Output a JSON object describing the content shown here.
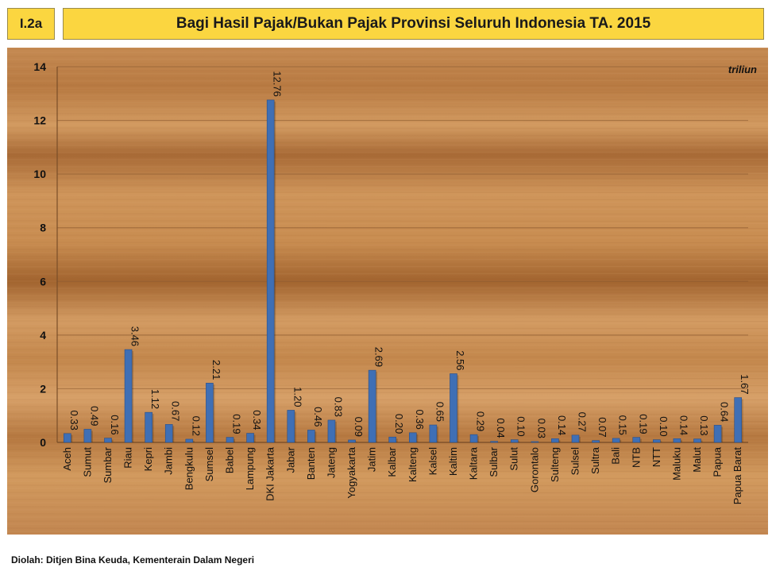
{
  "header": {
    "code": "I.2a",
    "title": "Bagi Hasil Pajak/Bukan Pajak  Provinsi Seluruh Indonesia TA. 2015"
  },
  "unit_label": "triliun",
  "source": "Diolah: Ditjen Bina Keuda, Kementerain Dalam Negeri",
  "colors": {
    "bar": "#3f6fb5",
    "header_bg": "#fbd640",
    "wood": "#c98a4e"
  },
  "chart_data": {
    "type": "bar",
    "title": "Bagi Hasil Pajak/Bukan Pajak  Provinsi Seluruh Indonesia TA. 2015",
    "ylabel": "triliun",
    "ylim": [
      0,
      14
    ],
    "yticks": [
      0,
      2,
      4,
      6,
      8,
      10,
      12,
      14
    ],
    "grid": true,
    "categories": [
      "Aceh",
      "Sumut",
      "Sumbar",
      "Riau",
      "Kepri",
      "Jambi",
      "Bengkulu",
      "Sumsel",
      "Babel",
      "Lampung",
      "DKI Jakarta",
      "Jabar",
      "Banten",
      "Jateng",
      "Yogyakarta",
      "Jatim",
      "Kalbar",
      "Kalteng",
      "Kalsel",
      "Kaltim",
      "Kaltara",
      "Sulbar",
      "Sulut",
      "Gorontalo",
      "Sulteng",
      "Sulsel",
      "Sultra",
      "Bali",
      "NTB",
      "NTT",
      "Maluku",
      "Malut",
      "Papua",
      "Papua Barat"
    ],
    "values": [
      0.33,
      0.49,
      0.16,
      3.46,
      1.12,
      0.67,
      0.12,
      2.21,
      0.19,
      0.34,
      12.76,
      1.2,
      0.46,
      0.83,
      0.09,
      2.69,
      0.2,
      0.36,
      0.65,
      2.56,
      0.29,
      0.04,
      0.1,
      0.03,
      0.14,
      0.27,
      0.07,
      0.15,
      0.19,
      0.1,
      0.14,
      0.13,
      0.64,
      1.67
    ],
    "value_labels": [
      "0.33",
      "0.49",
      "0.16",
      "3.46",
      "1.12",
      "0.67",
      "0.12",
      "2.21",
      "0.19",
      "0.34",
      "12.76",
      "1.20",
      "0.46",
      "0.83",
      "0.09",
      "2.69",
      "0.20",
      "0.36",
      "0.65",
      "2.56",
      "0.29",
      "0.04",
      "0.10",
      "0.03",
      "0.14",
      "0.27",
      "0.07",
      "0.15",
      "0.19",
      "0.10",
      "0.14",
      "0.13",
      "0.64",
      "1.67"
    ]
  }
}
